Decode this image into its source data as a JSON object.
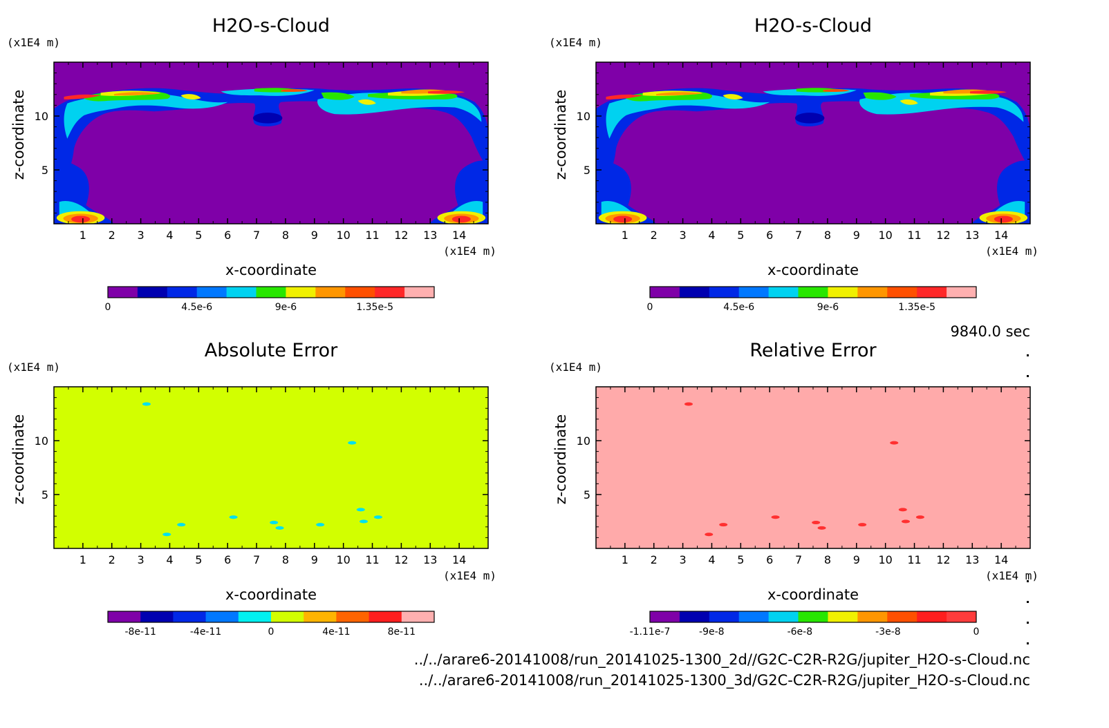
{
  "time_label": "9840.0 sec",
  "files": [
    "../../arare6-20141008/run_20141025-1300_2d//G2C-C2R-R2G/jupiter_H2O-s-Cloud.nc",
    "../../arare6-20141008/run_20141025-1300_3d/G2C-C2R-R2G/jupiter_H2O-s-Cloud.nc"
  ],
  "chart_data": [
    {
      "type": "heatmap",
      "title": "H2O-s-Cloud",
      "xlabel": "x-coordinate",
      "ylabel": "z-coordinate",
      "x_unit": "(x1E4 m)",
      "y_unit": "(x1E4 m)",
      "xlim": [
        0,
        15
      ],
      "ylim": [
        0,
        15
      ],
      "x_ticks": [
        "1",
        "2",
        "3",
        "4",
        "5",
        "6",
        "7",
        "8",
        "9",
        "10",
        "11",
        "12",
        "13",
        "14"
      ],
      "y_ticks": [
        "5",
        "10"
      ],
      "background_color": "#7f00a8",
      "colorbar": {
        "colors": [
          "#7f00a8",
          "#0000b0",
          "#0028e6",
          "#0078ff",
          "#00d2f0",
          "#28e600",
          "#f0f000",
          "#ff9600",
          "#ff5000",
          "#ff2828",
          "#ffb0b0"
        ],
        "tick_labels": [
          "0",
          "4.5e-6",
          "9e-6",
          "1.35e-5"
        ],
        "tick_values": [
          0,
          4.5e-06,
          9e-06,
          1.35e-05
        ],
        "range": [
          0,
          1.65e-05
        ]
      }
    },
    {
      "type": "heatmap",
      "title": "H2O-s-Cloud",
      "xlabel": "x-coordinate",
      "ylabel": "z-coordinate",
      "x_unit": "(x1E4 m)",
      "y_unit": "(x1E4 m)",
      "xlim": [
        0,
        15
      ],
      "ylim": [
        0,
        15
      ],
      "x_ticks": [
        "1",
        "2",
        "3",
        "4",
        "5",
        "6",
        "7",
        "8",
        "9",
        "10",
        "11",
        "12",
        "13",
        "14"
      ],
      "y_ticks": [
        "5",
        "10"
      ],
      "background_color": "#7f00a8",
      "colorbar": {
        "colors": [
          "#7f00a8",
          "#0000b0",
          "#0028e6",
          "#0078ff",
          "#00d2f0",
          "#28e600",
          "#f0f000",
          "#ff9600",
          "#ff5000",
          "#ff2828",
          "#ffb0b0"
        ],
        "tick_labels": [
          "0",
          "4.5e-6",
          "9e-6",
          "1.35e-5"
        ],
        "tick_values": [
          0,
          4.5e-06,
          9e-06,
          1.35e-05
        ],
        "range": [
          0,
          1.65e-05
        ]
      }
    },
    {
      "type": "heatmap",
      "title": "Absolute Error",
      "xlabel": "x-coordinate",
      "ylabel": "z-coordinate",
      "x_unit": "(x1E4 m)",
      "y_unit": "(x1E4 m)",
      "xlim": [
        0,
        15
      ],
      "ylim": [
        0,
        15
      ],
      "x_ticks": [
        "1",
        "2",
        "3",
        "4",
        "5",
        "6",
        "7",
        "8",
        "9",
        "10",
        "11",
        "12",
        "13",
        "14"
      ],
      "y_ticks": [
        "5",
        "10"
      ],
      "background_color": "#d2ff00",
      "spot_color": "#00e0f0",
      "spots": [
        [
          3.2,
          13.4
        ],
        [
          10.3,
          9.8
        ],
        [
          3.9,
          1.3
        ],
        [
          4.4,
          2.2
        ],
        [
          6.2,
          2.9
        ],
        [
          7.6,
          2.4
        ],
        [
          7.8,
          1.9
        ],
        [
          9.2,
          2.2
        ],
        [
          10.6,
          3.6
        ],
        [
          10.7,
          2.5
        ],
        [
          11.2,
          2.9
        ]
      ],
      "colorbar": {
        "colors": [
          "#7f00a8",
          "#0000b0",
          "#0028e6",
          "#0078ff",
          "#00f0f0",
          "#d2ff00",
          "#ffb400",
          "#ff6400",
          "#ff1e1e",
          "#ffb0b0"
        ],
        "tick_labels": [
          "-8e-11",
          "-4e-11",
          "0",
          "4e-11",
          "8e-11"
        ],
        "tick_values": [
          -8e-11,
          -4e-11,
          0,
          4e-11,
          8e-11
        ],
        "range": [
          -1e-10,
          1e-10
        ]
      }
    },
    {
      "type": "heatmap",
      "title": "Relative Error",
      "xlabel": "x-coordinate",
      "ylabel": "z-coordinate",
      "x_unit": "(x1E4 m)",
      "y_unit": "(x1E4 m)",
      "xlim": [
        0,
        15
      ],
      "ylim": [
        0,
        15
      ],
      "x_ticks": [
        "1",
        "2",
        "3",
        "4",
        "5",
        "6",
        "7",
        "8",
        "9",
        "10",
        "11",
        "12",
        "13",
        "14"
      ],
      "y_ticks": [
        "5",
        "10"
      ],
      "background_color": "#ffaaaa",
      "spot_color": "#ff3030",
      "spots": [
        [
          3.2,
          13.4
        ],
        [
          10.3,
          9.8
        ],
        [
          3.9,
          1.3
        ],
        [
          4.4,
          2.2
        ],
        [
          6.2,
          2.9
        ],
        [
          7.6,
          2.4
        ],
        [
          7.8,
          1.9
        ],
        [
          9.2,
          2.2
        ],
        [
          10.6,
          3.6
        ],
        [
          10.7,
          2.5
        ],
        [
          11.2,
          2.9
        ]
      ],
      "colorbar": {
        "colors": [
          "#7f00a8",
          "#0000b0",
          "#0028e6",
          "#0078ff",
          "#00d2f0",
          "#28e600",
          "#f0f000",
          "#ff9600",
          "#ff5000",
          "#ff1e1e",
          "#ff3c3c"
        ],
        "tick_labels": [
          "-1.11e-7",
          "-9e-8",
          "-6e-8",
          "-3e-8",
          "0"
        ],
        "tick_values": [
          -1.11e-07,
          -9e-08,
          -6e-08,
          -3e-08,
          0
        ],
        "range": [
          -1.11e-07,
          0
        ]
      }
    }
  ]
}
